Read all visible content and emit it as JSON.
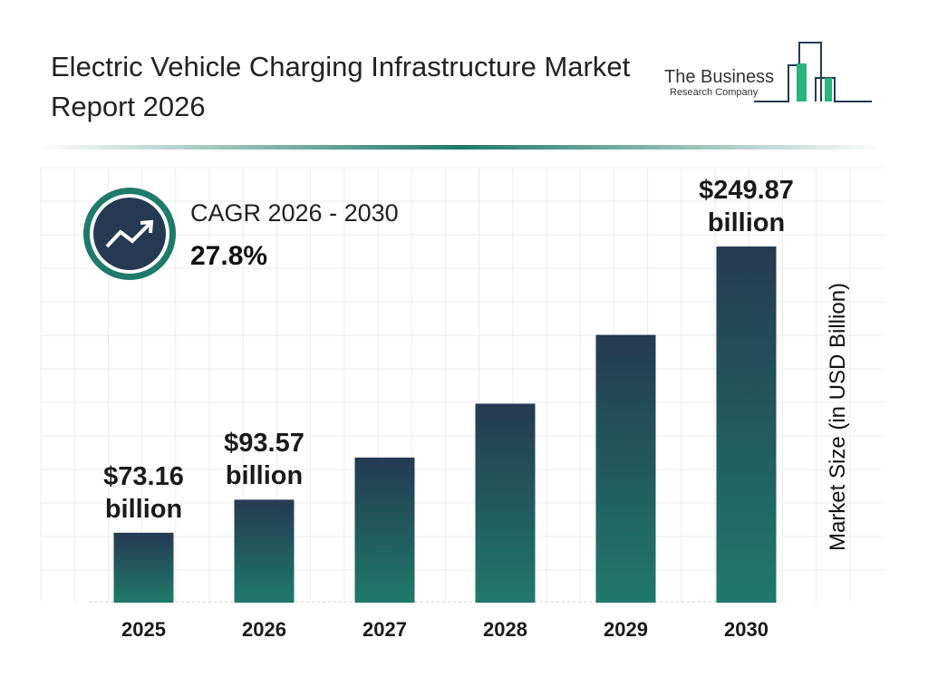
{
  "chart_data": {
    "type": "bar",
    "title": "Electric Vehicle Charging Infrastructure Market Report 2026",
    "logo": [
      "The Business",
      "Research Company"
    ],
    "cagr_label": "CAGR 2026 - 2030",
    "cagr_value": "27.8%",
    "y_label": "Market Size (in USD Billion)",
    "categories": [
      "2025",
      "2026",
      "2027",
      "2028",
      "2029",
      "2030"
    ],
    "values": [
      73.16,
      93.57,
      119.58,
      152.83,
      195.31,
      249.87
    ],
    "value_labels": [
      "$73.16 billion",
      "$93.57 billion",
      null,
      null,
      null,
      "$249.87 billion"
    ],
    "ylim": [
      30,
      270
    ],
    "colors": [
      "#253a52",
      "#1f7a6a"
    ]
  }
}
